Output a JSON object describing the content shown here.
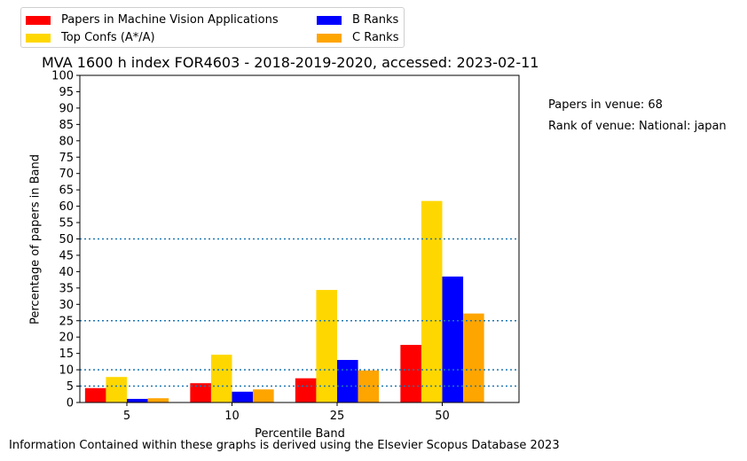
{
  "chart_data": {
    "type": "bar",
    "title": "MVA 1600 h index FOR4603 - 2018-2019-2020, accessed: 2023-02-11",
    "xlabel": "Percentile Band",
    "ylabel": "Percentage of papers in Band",
    "categories": [
      "5",
      "10",
      "25",
      "50"
    ],
    "series": [
      {
        "name": "Papers in Machine Vision Applications",
        "color": "#ff0000",
        "values": [
          4.4,
          5.9,
          7.4,
          17.6
        ]
      },
      {
        "name": "Top Confs (A*/A)",
        "color": "#ffd700",
        "values": [
          7.8,
          14.6,
          34.4,
          61.6
        ]
      },
      {
        "name": "B Ranks",
        "color": "#0000ff",
        "values": [
          1.1,
          3.3,
          13.0,
          38.5
        ]
      },
      {
        "name": "C Ranks",
        "color": "#ffa500",
        "values": [
          1.3,
          4.0,
          9.8,
          27.2
        ]
      }
    ],
    "ylim": [
      0,
      100
    ],
    "yticks": [
      0,
      5,
      10,
      15,
      20,
      25,
      30,
      35,
      40,
      45,
      50,
      55,
      60,
      65,
      70,
      75,
      80,
      85,
      90,
      95,
      100
    ],
    "reference_lines": [
      5,
      10,
      25,
      50
    ],
    "reference_line_color": "#1f77b4",
    "legend_position": "top-left, above plot, 2 columns",
    "grid": false
  },
  "annotations": {
    "papers_in_venue": "Papers in venue: 68",
    "rank_of_venue": "Rank of venue: National: japan"
  },
  "footer": "Information Contained within these graphs is derived using the Elsevier Scopus Database 2023"
}
